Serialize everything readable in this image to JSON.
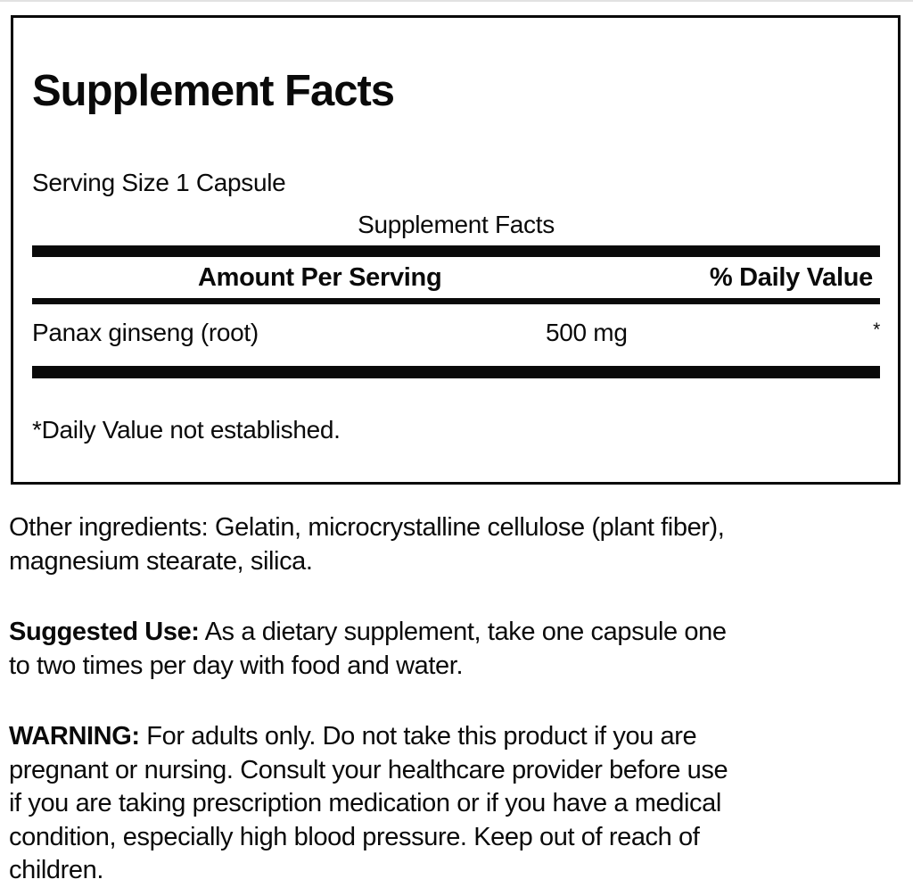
{
  "panel": {
    "title": "Supplement Facts",
    "serving_size": "Serving Size 1 Capsule",
    "table_title": "Supplement Facts",
    "columns": {
      "amount": "Amount Per Serving",
      "daily_value": "% Daily Value"
    },
    "row": {
      "name": "Panax ginseng (root)",
      "amount": "500 mg",
      "daily_value": "*"
    },
    "footnote": "*Daily Value not established."
  },
  "other_ingredients": {
    "text": "Other ingredients: Gelatin, microcrystalline cellulose (plant fiber),\nmagnesium stearate, silica."
  },
  "suggested_use": {
    "label": "Suggested Use:",
    "text": " As a dietary supplement, take one capsule one\nto two times per day with food and water."
  },
  "warning": {
    "label": "WARNING:",
    "text": " For adults only. Do not take this product if you are\npregnant or nursing. Consult your healthcare provider before use\nif you are taking prescription medication or if you have a medical\ncondition, especially high blood pressure. Keep out of reach of\nchildren."
  },
  "colors": {
    "ink": "#0a0a0a",
    "background": "#ffffff"
  }
}
